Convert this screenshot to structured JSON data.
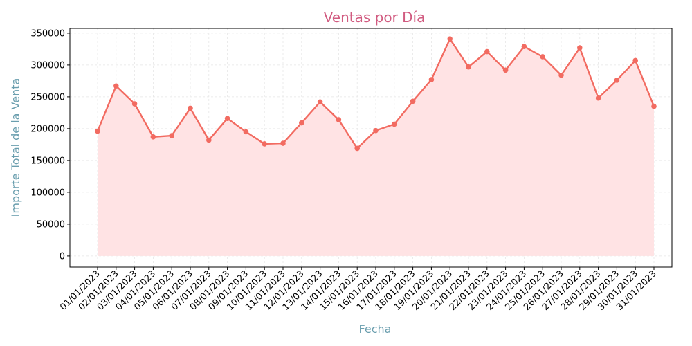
{
  "chart_data": {
    "type": "line",
    "title": "Ventas por Día",
    "xlabel": "Fecha",
    "ylabel": "Importe Total de la Venta",
    "categories": [
      "01/01/2023",
      "02/01/2023",
      "03/01/2023",
      "04/01/2023",
      "05/01/2023",
      "06/01/2023",
      "07/01/2023",
      "08/01/2023",
      "09/01/2023",
      "10/01/2023",
      "11/01/2023",
      "12/01/2023",
      "13/01/2023",
      "14/01/2023",
      "15/01/2023",
      "16/01/2023",
      "17/01/2023",
      "18/01/2023",
      "19/01/2023",
      "20/01/2023",
      "21/01/2023",
      "22/01/2023",
      "23/01/2023",
      "24/01/2023",
      "25/01/2023",
      "26/01/2023",
      "27/01/2023",
      "28/01/2023",
      "29/01/2023",
      "30/01/2023",
      "31/01/2023"
    ],
    "values": [
      196000,
      267000,
      239000,
      187000,
      189000,
      232000,
      182000,
      216000,
      195000,
      176000,
      177000,
      209000,
      242000,
      214000,
      169000,
      197000,
      207000,
      243000,
      277000,
      341000,
      297000,
      321000,
      292000,
      329000,
      313000,
      284000,
      327000,
      248000,
      276000,
      307000,
      235000
    ],
    "ylim": [
      -17500,
      357500
    ],
    "yticks": [
      0,
      50000,
      100000,
      150000,
      200000,
      250000,
      300000,
      350000
    ],
    "grid": true,
    "fill_under": true,
    "colors": {
      "line": "#f26b61",
      "marker": "#f26b61",
      "fill": "#ffe3e4",
      "title": "#d15b80",
      "axis_label": "#6a9eae",
      "grid": "#e6e6e6"
    }
  }
}
